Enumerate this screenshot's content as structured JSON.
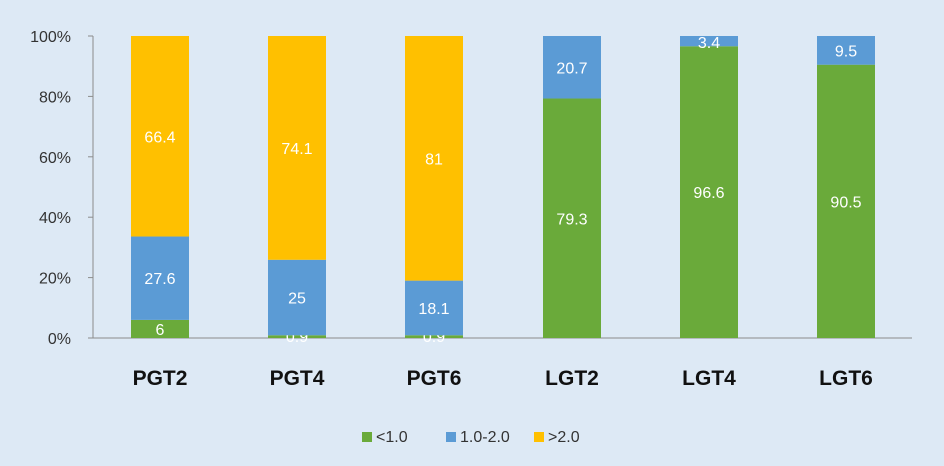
{
  "chart_data": {
    "type": "bar",
    "stacked": true,
    "categories": [
      "PGT2",
      "PGT4",
      "PGT6",
      "LGT2",
      "LGT4",
      "LGT6"
    ],
    "series": [
      {
        "name": "<1.0",
        "color": "#6aaa3a",
        "values": [
          6,
          0.9,
          0.9,
          79.3,
          96.6,
          90.5
        ]
      },
      {
        "name": "1.0-2.0",
        "color": "#5b9bd5",
        "values": [
          27.6,
          25,
          18.1,
          20.7,
          3.4,
          9.5
        ]
      },
      {
        "name": ">2.0",
        "color": "#ffc000",
        "values": [
          66.4,
          74.1,
          81,
          0,
          0,
          0
        ]
      }
    ],
    "yticks": [
      "0%",
      "20%",
      "40%",
      "60%",
      "80%",
      "100%"
    ],
    "ylim": [
      0,
      100
    ],
    "grid": false,
    "legend": "bottom",
    "xlabel": "",
    "ylabel": "",
    "title": ""
  }
}
